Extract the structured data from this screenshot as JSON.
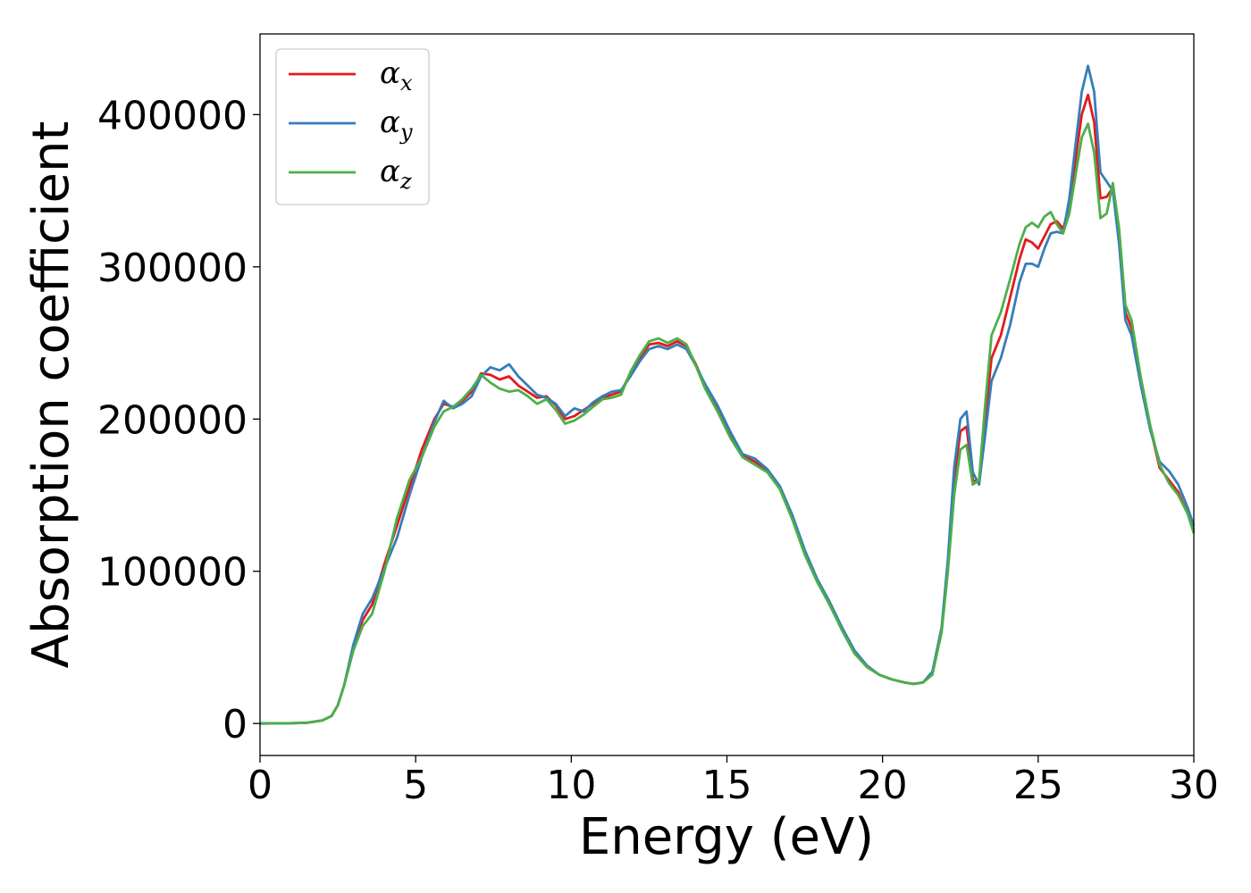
{
  "chart_data": {
    "type": "line",
    "title": "",
    "xlabel": "Energy (eV)",
    "ylabel": "Absorption coefficient",
    "xlim": [
      0,
      30
    ],
    "ylim": [
      -21000,
      453000
    ],
    "xticks": [
      0,
      5,
      10,
      15,
      20,
      25,
      30
    ],
    "yticks": [
      0,
      100000,
      200000,
      300000,
      400000
    ],
    "grid": false,
    "legend_position": "top-left",
    "x": [
      0,
      1,
      1.5,
      2,
      2.3,
      2.5,
      2.7,
      3.0,
      3.3,
      3.6,
      4.0,
      4.4,
      4.8,
      5.2,
      5.6,
      5.9,
      6.2,
      6.5,
      6.8,
      7.1,
      7.4,
      7.7,
      8.0,
      8.3,
      8.6,
      8.9,
      9.2,
      9.5,
      9.8,
      10.1,
      10.4,
      10.7,
      11.0,
      11.3,
      11.6,
      11.9,
      12.2,
      12.5,
      12.8,
      13.1,
      13.4,
      13.7,
      14.0,
      14.3,
      14.7,
      15.1,
      15.5,
      15.9,
      16.3,
      16.7,
      17.1,
      17.5,
      17.9,
      18.3,
      18.7,
      19.1,
      19.5,
      19.9,
      20.3,
      20.7,
      21.0,
      21.3,
      21.6,
      21.9,
      22.1,
      22.3,
      22.5,
      22.7,
      22.9,
      23.1,
      23.3,
      23.5,
      23.8,
      24.1,
      24.4,
      24.6,
      24.8,
      25.0,
      25.2,
      25.4,
      25.6,
      25.8,
      26.0,
      26.2,
      26.4,
      26.6,
      26.8,
      27.0,
      27.2,
      27.4,
      27.6,
      27.8,
      28.0,
      28.3,
      28.6,
      28.9,
      29.2,
      29.5,
      29.8,
      30.0
    ],
    "series": [
      {
        "name": "α",
        "subscript": "x",
        "color": "#e41a1c",
        "values": [
          0,
          200,
          500,
          2000,
          5000,
          12000,
          25000,
          50000,
          68000,
          78000,
          105000,
          130000,
          155000,
          180000,
          200000,
          210000,
          208000,
          212000,
          218000,
          230000,
          229000,
          226000,
          228000,
          222000,
          218000,
          214000,
          215000,
          209000,
          200000,
          202000,
          206000,
          210000,
          214000,
          216000,
          218000,
          230000,
          240000,
          249000,
          250000,
          248000,
          251000,
          248000,
          236000,
          222000,
          208000,
          190000,
          176000,
          172000,
          166000,
          155000,
          135000,
          112000,
          94000,
          78000,
          62000,
          47000,
          37000,
          32000,
          29000,
          27000,
          26000,
          27000,
          33000,
          62000,
          105000,
          160000,
          192000,
          195000,
          160000,
          158000,
          200000,
          240000,
          255000,
          280000,
          305000,
          318000,
          316000,
          312000,
          320000,
          328000,
          330000,
          325000,
          340000,
          370000,
          400000,
          413000,
          395000,
          345000,
          346000,
          352000,
          320000,
          270000,
          260000,
          225000,
          195000,
          168000,
          160000,
          152000,
          138000,
          127000
        ]
      },
      {
        "name": "α",
        "subscript": "y",
        "color": "#377eb8",
        "values": [
          0,
          200,
          500,
          2000,
          5000,
          12000,
          25000,
          52000,
          72000,
          82000,
          102000,
          122000,
          150000,
          175000,
          198000,
          212000,
          207000,
          210000,
          215000,
          228000,
          234000,
          232000,
          236000,
          228000,
          222000,
          216000,
          214000,
          210000,
          202000,
          207000,
          205000,
          211000,
          215000,
          218000,
          219000,
          228000,
          238000,
          246000,
          248000,
          246000,
          249000,
          246000,
          235000,
          223000,
          209000,
          192000,
          177000,
          174000,
          167000,
          156000,
          137000,
          114000,
          95000,
          80000,
          63000,
          48000,
          38000,
          32000,
          29000,
          27000,
          26000,
          27000,
          34000,
          63000,
          108000,
          168000,
          200000,
          205000,
          165000,
          157000,
          190000,
          225000,
          240000,
          262000,
          290000,
          302000,
          302000,
          300000,
          312000,
          322000,
          323000,
          322000,
          345000,
          380000,
          415000,
          432000,
          415000,
          362000,
          356000,
          350000,
          315000,
          265000,
          255000,
          222000,
          193000,
          172000,
          166000,
          157000,
          142000,
          130000
        ]
      },
      {
        "name": "α",
        "subscript": "z",
        "color": "#4daf4a",
        "values": [
          0,
          200,
          500,
          2000,
          5000,
          12000,
          25000,
          48000,
          64000,
          72000,
          100000,
          135000,
          160000,
          175000,
          195000,
          205000,
          208000,
          213000,
          220000,
          229000,
          224000,
          220000,
          218000,
          219000,
          215000,
          210000,
          213000,
          206000,
          197000,
          199000,
          203000,
          208000,
          213000,
          214000,
          216000,
          231000,
          242000,
          251000,
          253000,
          250000,
          253000,
          249000,
          235000,
          220000,
          205000,
          188000,
          175000,
          170000,
          165000,
          154000,
          134000,
          111000,
          93000,
          78000,
          61000,
          46000,
          37000,
          32000,
          29000,
          27000,
          26000,
          27000,
          32000,
          60000,
          100000,
          150000,
          180000,
          183000,
          157000,
          160000,
          210000,
          255000,
          270000,
          292000,
          315000,
          326000,
          329000,
          326000,
          333000,
          336000,
          328000,
          322000,
          335000,
          360000,
          385000,
          394000,
          375000,
          332000,
          335000,
          355000,
          325000,
          275000,
          265000,
          227000,
          196000,
          170000,
          158000,
          150000,
          138000,
          125000
        ]
      }
    ]
  }
}
